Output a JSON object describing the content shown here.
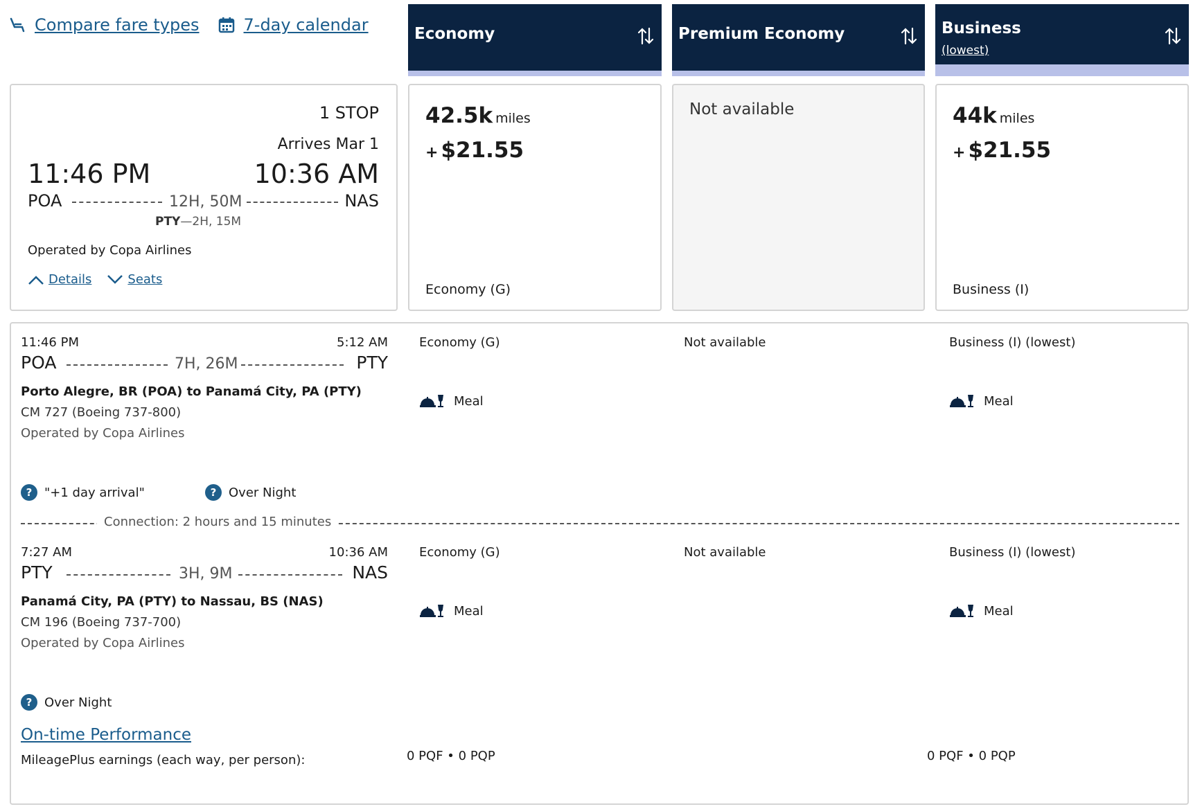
{
  "top_links": {
    "compare": "Compare fare types",
    "calendar": "7-day calendar"
  },
  "fare_columns": [
    {
      "title": "Economy",
      "sub": "",
      "miles": "42.5k",
      "miles_unit": "miles",
      "plus": "+",
      "cash": "$21.55",
      "class": "Economy (G)",
      "available": true
    },
    {
      "title": "Premium Economy",
      "sub": "",
      "na": "Not available",
      "available": false
    },
    {
      "title": "Business",
      "sub": "(lowest)",
      "miles": "44k",
      "miles_unit": "miles",
      "plus": "+",
      "cash": "$21.55",
      "class": "Business (I)",
      "available": true
    }
  ],
  "summary": {
    "stops": "1 STOP",
    "arrives": "Arrives Mar 1",
    "depart_time": "11:46 PM",
    "arrive_time": "10:36 AM",
    "origin": "POA",
    "destination": "NAS",
    "duration": "12H, 50M",
    "layover_code": "PTY",
    "layover_sep": "—",
    "layover_time": "2H, 15M",
    "operated": "Operated by Copa Airlines",
    "details_label": "Details",
    "seats_label": "Seats"
  },
  "segments": [
    {
      "depart_time": "11:46 PM",
      "arrive_time": "5:12 AM",
      "origin": "POA",
      "destination": "PTY",
      "duration": "7H, 26M",
      "route": "Porto Alegre, BR (POA) to Panamá City, PA (PTY)",
      "flight": "CM 727 (Boeing 737-800)",
      "operated": "Operated by Copa Airlines",
      "economy": "Economy (G)",
      "premium": "Not available",
      "business": "Business (I) (lowest)",
      "meal": "Meal",
      "notes": [
        "\"+1 day arrival\"",
        "Over Night"
      ]
    },
    {
      "depart_time": "7:27 AM",
      "arrive_time": "10:36 AM",
      "origin": "PTY",
      "destination": "NAS",
      "duration": "3H, 9M",
      "route": "Panamá City, PA (PTY) to Nassau, BS (NAS)",
      "flight": "CM 196 (Boeing 737-700)",
      "operated": "Operated by Copa Airlines",
      "economy": "Economy (G)",
      "premium": "Not available",
      "business": "Business (I) (lowest)",
      "meal": "Meal",
      "notes": [
        "Over Night"
      ]
    }
  ],
  "connection": "Connection: 2 hours and 15 minutes",
  "on_time": "On-time Performance",
  "earnings": {
    "label": "MileagePlus earnings (each way, per person):",
    "economy_pqf": "0 PQF",
    "economy_pqp": "0 PQP",
    "business_pqf": "0 PQF",
    "business_pqp": "0 PQP",
    "dot": "•"
  },
  "colors": {
    "header_bg": "#0b2341",
    "header_bar": "#b8c0e8",
    "link": "#1a5c8c",
    "help_icon": "#1f5f8b"
  }
}
